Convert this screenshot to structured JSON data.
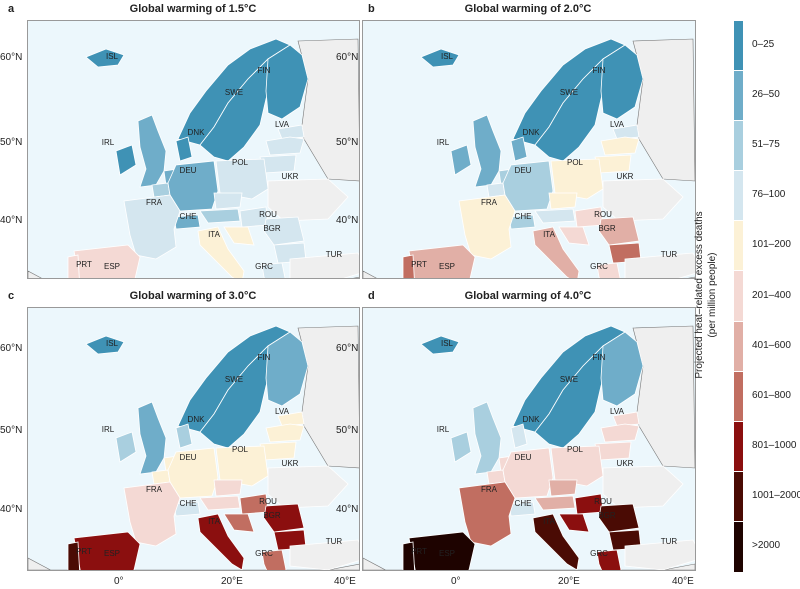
{
  "panels": [
    {
      "letter": "a",
      "title": "Global warming of 1.5°C"
    },
    {
      "letter": "b",
      "title": "Global warming of 2.0°C"
    },
    {
      "letter": "c",
      "title": "Global warming of 3.0°C"
    },
    {
      "letter": "d",
      "title": "Global warming of 4.0°C"
    }
  ],
  "latitude_labels": [
    "60°N",
    "50°N",
    "40°N"
  ],
  "longitude_labels": [
    "0°",
    "20°E",
    "40°E"
  ],
  "country_labels": [
    "ISL",
    "FIN",
    "SWE",
    "LVA",
    "DNK",
    "IRL",
    "POL",
    "DEU",
    "UKR",
    "FRA",
    "CHE",
    "ROU",
    "BGR",
    "ITA",
    "PRT",
    "ESP",
    "GRC",
    "TUR"
  ],
  "legend": {
    "title_line1": "Projected heat–related excess deaths",
    "title_line2": "(per million people)",
    "classes": [
      {
        "label": "0–25",
        "color": "#3f92b5"
      },
      {
        "label": "26–50",
        "color": "#6fadc9"
      },
      {
        "label": "51–75",
        "color": "#a9cfdf"
      },
      {
        "label": "76–100",
        "color": "#d4e6ef"
      },
      {
        "label": "101–200",
        "color": "#fcf1d6"
      },
      {
        "label": "201–400",
        "color": "#f4d9d4"
      },
      {
        "label": "401–600",
        "color": "#e1afa6"
      },
      {
        "label": "601–800",
        "color": "#c16e61"
      },
      {
        "label": "801–1000",
        "color": "#8b0f0f"
      },
      {
        "label": "1001–2000",
        "color": "#4a0b04"
      },
      {
        "label": ">2000",
        "color": "#1e0300"
      }
    ]
  },
  "colors": {
    "sea": "#ecf7fc",
    "land_outside": "#efefef",
    "border": "#777777"
  },
  "region_classes": {
    "a": {
      "ISL": 0,
      "FIN": 0,
      "SWE": 0,
      "NOR": 0,
      "LVA": 3,
      "EST": 3,
      "LTU": 3,
      "DNK": 0,
      "IRL": 0,
      "GBR": 1,
      "POL": 3,
      "DEU": 1,
      "NLD": 1,
      "BEL": 2,
      "FRA": 3,
      "CHE": 1,
      "AUT": 2,
      "CZE": 3,
      "HUN": 3,
      "ROU": 3,
      "BGR": 3,
      "ITA": 4,
      "PRT": 5,
      "ESP": 5,
      "GRC": 3,
      "HRV": 4
    },
    "b": {
      "ISL": 0,
      "FIN": 0,
      "SWE": 0,
      "NOR": 0,
      "LVA": 4,
      "EST": 3,
      "LTU": 4,
      "DNK": 1,
      "IRL": 1,
      "GBR": 1,
      "POL": 4,
      "DEU": 2,
      "NLD": 2,
      "BEL": 3,
      "FRA": 4,
      "CHE": 2,
      "AUT": 3,
      "CZE": 4,
      "HUN": 5,
      "ROU": 6,
      "BGR": 7,
      "ITA": 6,
      "PRT": 7,
      "ESP": 6,
      "GRC": 5,
      "HRV": 5
    },
    "c": {
      "ISL": 0,
      "FIN": 1,
      "SWE": 0,
      "NOR": 0,
      "LVA": 4,
      "EST": 4,
      "LTU": 4,
      "DNK": 2,
      "IRL": 2,
      "GBR": 1,
      "POL": 4,
      "DEU": 4,
      "NLD": 4,
      "BEL": 4,
      "FRA": 5,
      "CHE": 3,
      "AUT": 5,
      "CZE": 5,
      "HUN": 7,
      "ROU": 8,
      "BGR": 8,
      "ITA": 8,
      "PRT": 9,
      "ESP": 8,
      "GRC": 7,
      "HRV": 7
    },
    "d": {
      "ISL": 0,
      "FIN": 1,
      "SWE": 0,
      "NOR": 0,
      "LVA": 5,
      "EST": 5,
      "LTU": 5,
      "DNK": 3,
      "IRL": 2,
      "GBR": 2,
      "POL": 5,
      "DEU": 5,
      "NLD": 5,
      "BEL": 5,
      "FRA": 7,
      "CHE": 3,
      "AUT": 6,
      "CZE": 6,
      "HUN": 8,
      "ROU": 9,
      "BGR": 9,
      "ITA": 9,
      "PRT": 10,
      "ESP": 10,
      "GRC": 8,
      "HRV": 8
    }
  }
}
